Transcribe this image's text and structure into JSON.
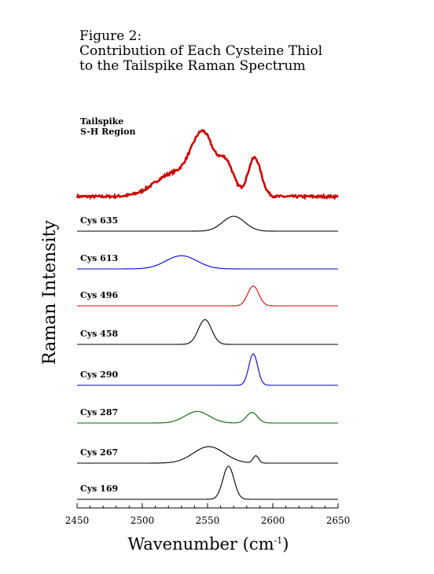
{
  "figure": {
    "title_line1": "Figure 2:",
    "title_line2": "Contribution of Each Cysteine Thiol",
    "title_line3": "to the Tailspike Raman Spectrum"
  },
  "chart_data": {
    "type": "line",
    "title": "Contribution of Each Cysteine Thiol to the Tailspike Raman Spectrum",
    "xlabel": "Wavenumber   (cm",
    "xlabel_sup": "-1",
    "xlabel_close": ")",
    "ylabel": "Raman  Intensity",
    "xlim": [
      2450,
      2650
    ],
    "xticks": [
      2450,
      2500,
      2550,
      2600,
      2650
    ],
    "grid": false,
    "legend": "none",
    "top_panel": {
      "label_line1": "Tailspike",
      "label_line2": "S-H  Region",
      "color": "#cc0000",
      "peaks": [
        {
          "center": 2525,
          "height": 0.28,
          "width": 15
        },
        {
          "center": 2548,
          "height": 0.62,
          "width": 7
        },
        {
          "center": 2564,
          "height": 0.4,
          "width": 6
        },
        {
          "center": 2586,
          "height": 0.46,
          "width": 5
        },
        {
          "center": 2538,
          "height": 0.18,
          "width": 6
        }
      ]
    },
    "series": [
      {
        "name": "Cys 635",
        "color": "#000000",
        "center": 2570,
        "fwhm": 20,
        "height": 0.45
      },
      {
        "name": "Cys 613",
        "color": "#0000cc",
        "center": 2530,
        "fwhm": 28,
        "height": 0.4
      },
      {
        "name": "Cys 496",
        "color": "#dd0000",
        "center": 2585,
        "fwhm": 10,
        "height": 0.6
      },
      {
        "name": "Cys 458",
        "color": "#000000",
        "center": 2548,
        "fwhm": 12,
        "height": 0.75
      },
      {
        "name": "Cys 290",
        "color": "#0000cc",
        "center": 2585,
        "fwhm": 8,
        "height": 0.95
      },
      {
        "name": "Cys 287",
        "color": "#006600",
        "center": 2542,
        "fwhm": 22,
        "height": 0.35,
        "second_center": 2584,
        "second_fwhm": 10,
        "second_height": 0.32
      },
      {
        "name": "Cys 267",
        "color": "#000000",
        "center": 2551,
        "fwhm": 28,
        "height": 0.5,
        "second_center": 2587,
        "second_fwhm": 5,
        "second_height": 0.22
      },
      {
        "name": "Cys 169",
        "color": "#000000",
        "center": 2566,
        "fwhm": 10,
        "height": 1.0
      }
    ]
  }
}
